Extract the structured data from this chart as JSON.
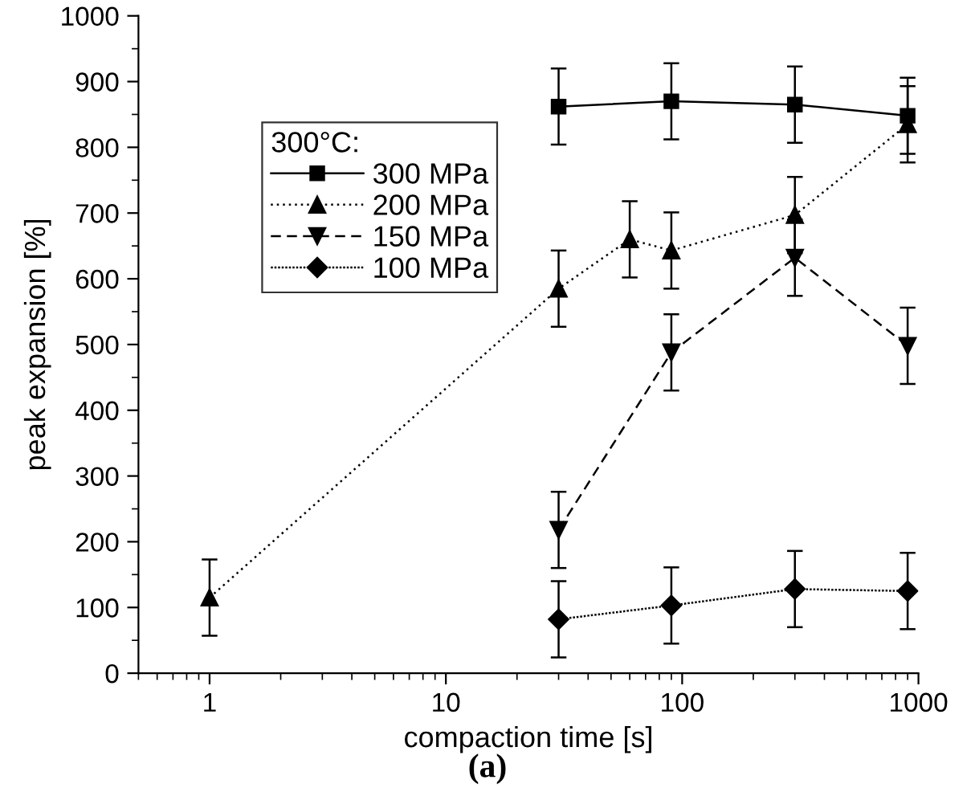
{
  "chart_data": {
    "type": "line",
    "xlabel": "compaction time [s]",
    "ylabel": "peak expansion [%]",
    "legend_title": "300°C:",
    "legend": "top left",
    "log": "x",
    "xlim": [
      0.5,
      1000
    ],
    "xticks": [
      1,
      10,
      100,
      1000
    ],
    "ylim": [
      0,
      1000
    ],
    "yticks": [
      0,
      100,
      200,
      300,
      400,
      500,
      600,
      700,
      800,
      900,
      1000
    ],
    "grid": false,
    "series": [
      {
        "name": "300 MPa",
        "color": "#000000",
        "marker": "square",
        "line_style": "solid",
        "x": [
          30,
          90,
          300,
          900
        ],
        "values": [
          862,
          870,
          865,
          848
        ],
        "errors": [
          58,
          58,
          58,
          58
        ]
      },
      {
        "name": "200 MPa",
        "color": "#000000",
        "marker": "triangle",
        "line_style": "dotted",
        "x": [
          1,
          30,
          60,
          90,
          300,
          900
        ],
        "values": [
          115,
          585,
          660,
          643,
          697,
          835
        ],
        "errors": [
          58,
          58,
          58,
          58,
          58,
          58
        ]
      },
      {
        "name": "150 MPa",
        "color": "#000000",
        "marker": "triangle_down",
        "line_style": "dashed",
        "x": [
          30,
          90,
          300,
          900
        ],
        "values": [
          218,
          488,
          632,
          498
        ],
        "errors": [
          58,
          58,
          58,
          58
        ]
      },
      {
        "name": "100 MPa",
        "color": "#000000",
        "marker": "diamond",
        "line_style": "densely_dotted",
        "x": [
          30,
          90,
          300,
          900
        ],
        "values": [
          82,
          103,
          128,
          125
        ],
        "errors": [
          58,
          58,
          58,
          58
        ]
      }
    ],
    "annotations": [
      "(a)"
    ]
  }
}
